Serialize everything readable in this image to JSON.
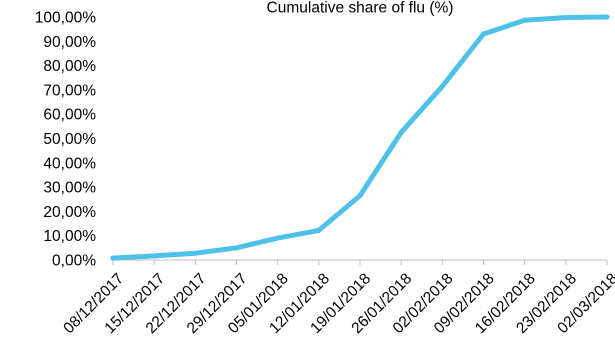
{
  "chart_data": {
    "type": "line",
    "title": "Cumulative share of flu (%)",
    "xlabel": "",
    "ylabel": "",
    "x": [
      "08/12/2017",
      "15/12/2017",
      "22/12/2017",
      "29/12/2017",
      "05/01/2018",
      "12/01/2018",
      "19/01/2018",
      "26/01/2018",
      "02/02/2018",
      "09/02/2018",
      "16/02/2018",
      "23/02/2018",
      "02/03/2018"
    ],
    "series": [
      {
        "values": [
          0.8,
          1.7,
          2.8,
          5.0,
          9.0,
          12.2,
          26.5,
          52.5,
          71.5,
          93.0,
          98.7,
          99.8,
          100.0
        ]
      }
    ],
    "yticks": [
      "0,00%",
      "10,00%",
      "20,00%",
      "30,00%",
      "40,00%",
      "50,00%",
      "60,00%",
      "70,00%",
      "80,00%",
      "90,00%",
      "100,00%"
    ],
    "ylim": [
      0,
      100
    ],
    "grid": false,
    "legend": "none",
    "line_color": "#4FC1E9",
    "axis_color": "#BFBFBF"
  }
}
